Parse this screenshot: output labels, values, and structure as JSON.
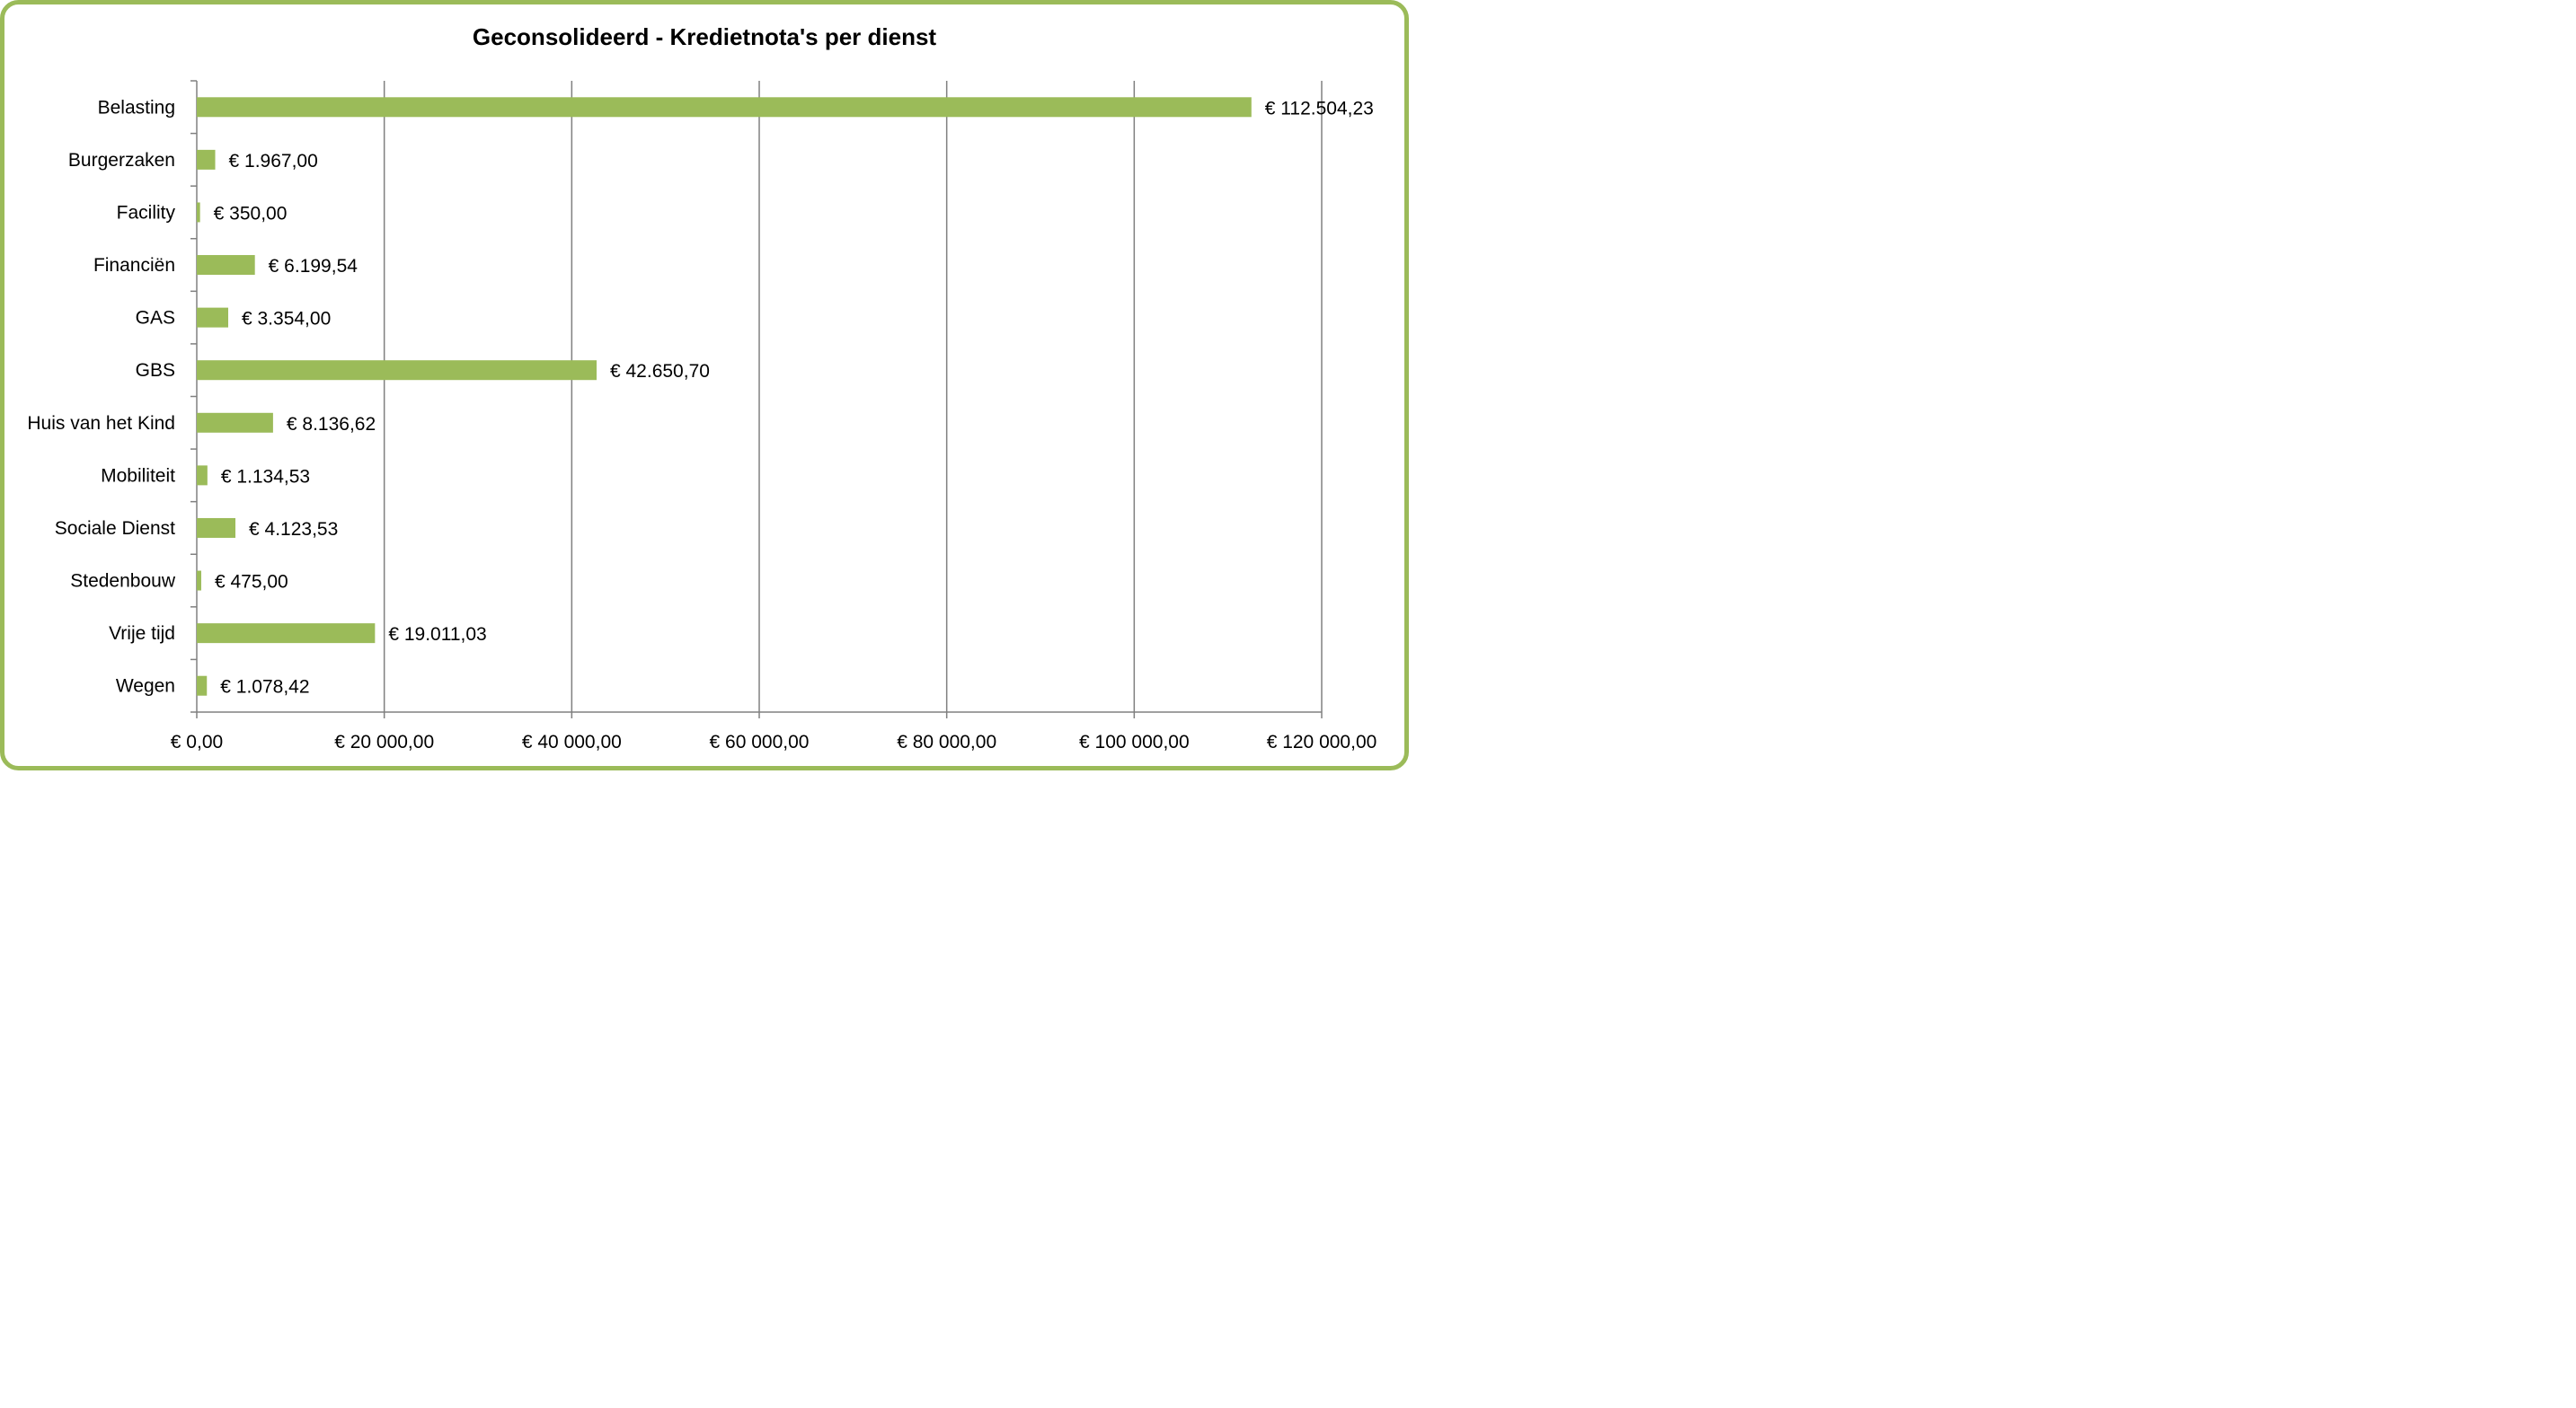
{
  "chart_data": {
    "type": "bar",
    "orientation": "horizontal",
    "title": "Geconsolideerd - Kredietnota's per dienst",
    "categories": [
      "Belasting",
      "Burgerzaken",
      "Facility",
      "Financiën",
      "GAS",
      "GBS",
      "Huis van het Kind",
      "Mobiliteit",
      "Sociale Dienst",
      "Stedenbouw",
      "Vrije tijd",
      "Wegen"
    ],
    "values": [
      112504.23,
      1967.0,
      350.0,
      6199.54,
      3354.0,
      42650.7,
      8136.62,
      1134.53,
      4123.53,
      475.0,
      19011.03,
      1078.42
    ],
    "data_labels": [
      "€ 112.504,23",
      "€ 1.967,00",
      "€ 350,00",
      "€ 6.199,54",
      "€ 3.354,00",
      "€ 42.650,70",
      "€ 8.136,62",
      "€ 1.134,53",
      "€ 4.123,53",
      "€ 475,00",
      "€ 19.011,03",
      "€ 1.078,42"
    ],
    "x_ticks": [
      0,
      20000,
      40000,
      60000,
      80000,
      100000,
      120000
    ],
    "x_tick_labels": [
      "€  0,00",
      "€ 20 000,00",
      "€ 40 000,00",
      "€ 60 000,00",
      "€ 80 000,00",
      "€ 100 000,00",
      "€ 120 000,00"
    ],
    "xlim": [
      0,
      120000
    ],
    "xlabel": "",
    "ylabel": "",
    "grid": "vertical",
    "legend": "none",
    "colors": {
      "bar": "#9BBB59",
      "frame": "#9BBB59",
      "grid": "#808080",
      "axis": "#808080"
    }
  }
}
